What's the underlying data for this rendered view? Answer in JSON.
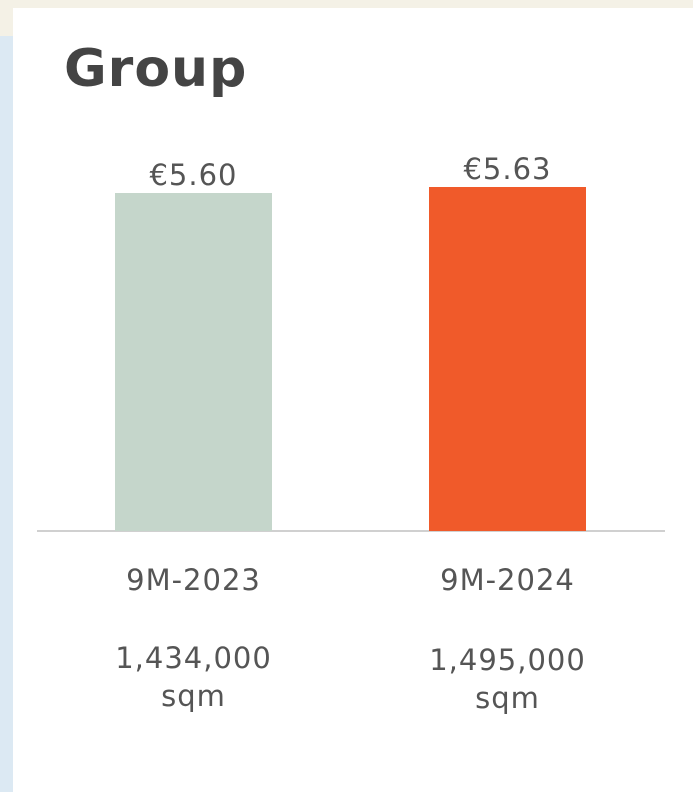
{
  "chart_data": {
    "type": "bar",
    "title": "Group",
    "categories": [
      "9M-2023",
      "9M-2024"
    ],
    "values": [
      5.6,
      5.63
    ],
    "value_labels": [
      "€5.60",
      "€5.63"
    ],
    "colors": [
      "#c5d6cb",
      "#f05a2a"
    ],
    "category_notes": [
      [
        "1,434,000",
        "sqm"
      ],
      [
        "1,495,000",
        "sqm"
      ]
    ],
    "ylim": [
      3.91,
      5.9
    ]
  }
}
